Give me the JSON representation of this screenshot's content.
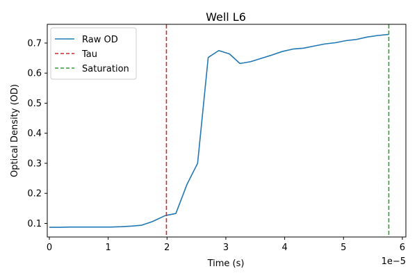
{
  "chart_data": {
    "type": "line",
    "title": "Well L6",
    "xlabel": "Time (s)",
    "ylabel": "Optical Density (OD)",
    "x_offset_text": "1e−5",
    "xlim": [
      -3.55e-07,
      6.06e-05
    ],
    "ylim": [
      0.0548,
      0.7623
    ],
    "x_ticks": [
      0,
      1e-05,
      2e-05,
      3e-05,
      4e-05,
      5e-05,
      6e-05
    ],
    "x_tick_labels": [
      "0",
      "1",
      "2",
      "3",
      "4",
      "5",
      "6"
    ],
    "y_ticks": [
      0.1,
      0.2,
      0.3,
      0.4,
      0.5,
      0.6,
      0.7
    ],
    "y_tick_labels": [
      "0.1",
      "0.2",
      "0.3",
      "0.4",
      "0.5",
      "0.6",
      "0.7"
    ],
    "grid": false,
    "legend_position": "upper-left",
    "series": [
      {
        "name": "Raw OD",
        "color": "#1f77b4",
        "style": "solid",
        "x": [
          0,
          1.7e-06,
          3.5e-06,
          5.2e-06,
          7e-06,
          8.7e-06,
          1.05e-05,
          1.22e-05,
          1.4e-05,
          1.57e-05,
          1.75e-05,
          1.97e-05,
          2.15e-05,
          2.34e-05,
          2.52e-05,
          2.7e-05,
          2.88e-05,
          3.06e-05,
          3.24e-05,
          3.42e-05,
          3.6e-05,
          3.78e-05,
          3.96e-05,
          4.14e-05,
          4.32e-05,
          4.5e-05,
          4.68e-05,
          4.86e-05,
          5.04e-05,
          5.22e-05,
          5.4e-05,
          5.58e-05,
          5.77e-05
        ],
        "y": [
          0.087,
          0.087,
          0.088,
          0.088,
          0.088,
          0.088,
          0.088,
          0.089,
          0.091,
          0.094,
          0.106,
          0.126,
          0.133,
          0.23,
          0.3,
          0.652,
          0.675,
          0.664,
          0.632,
          0.638,
          0.649,
          0.66,
          0.672,
          0.68,
          0.683,
          0.69,
          0.697,
          0.701,
          0.708,
          0.712,
          0.72,
          0.725,
          0.729
        ]
      },
      {
        "name": "Tau",
        "color": "#d62728",
        "style": "dashed",
        "x_value": 1.99e-05
      },
      {
        "name": "Saturation",
        "color": "#2ca02c",
        "style": "dashed",
        "x_value": 5.77e-05
      }
    ]
  }
}
